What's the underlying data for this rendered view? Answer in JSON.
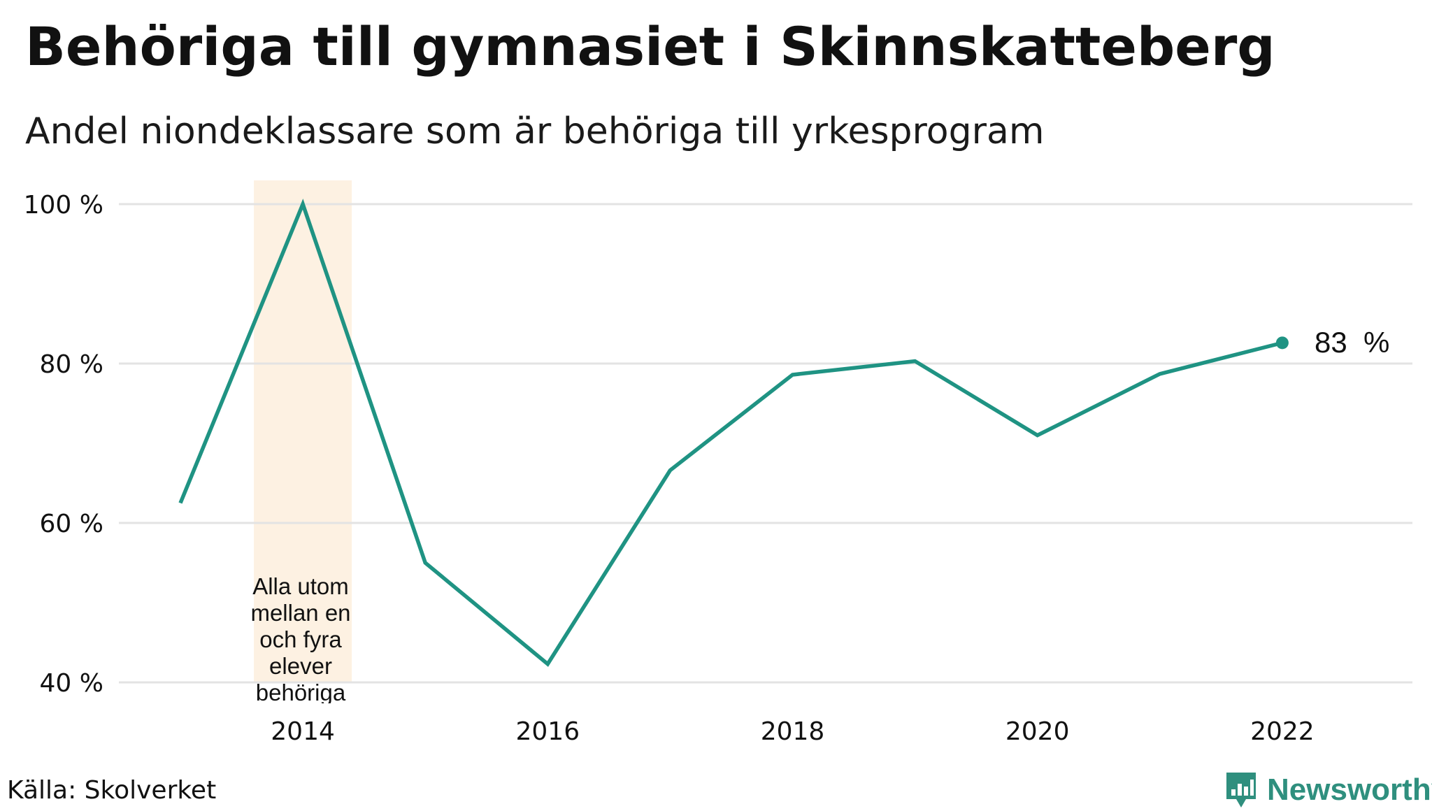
{
  "title": "Behöriga till gymnasiet i Skinnskatteberg",
  "subtitle": "Andel niondeklassare som är behöriga till yrkesprogram",
  "source": "Källa: Skolverket",
  "brand": {
    "name": "Newsworthy",
    "icon": "newsworthy-logo-icon",
    "color": "#2f8f7e"
  },
  "annotation": {
    "text": "Alla utom mellan en och fyra elever behöriga",
    "year": 2014,
    "color": "#fdf1e2"
  },
  "end_label": "83  %",
  "chart_data": {
    "type": "line",
    "title": "Behöriga till gymnasiet i Skinnskatteberg",
    "subtitle": "Andel niondeklassare som är behöriga till yrkesprogram",
    "xlabel": "",
    "ylabel": "",
    "x": [
      2013,
      2014,
      2015,
      2016,
      2017,
      2018,
      2019,
      2020,
      2021,
      2022
    ],
    "series": [
      {
        "values": [
          62.5,
          100,
          55,
          42.3,
          66.6,
          78.6,
          80.3,
          71,
          78.7,
          82.6
        ],
        "color": "#1f9383"
      }
    ],
    "xlim": [
      2012.5,
      2023.1
    ],
    "ylim": [
      40,
      100
    ],
    "x_ticks": [
      2014,
      2016,
      2018,
      2020,
      2022
    ],
    "x_tick_labels": [
      "2014",
      "2016",
      "2018",
      "2020",
      "2022"
    ],
    "y_ticks": [
      40,
      60,
      80,
      100
    ],
    "y_tick_labels": [
      "40 %",
      "60 %",
      "80 %",
      "100 %"
    ],
    "grid": true,
    "gridline_color": "#e3e3e3",
    "legend": "none"
  }
}
